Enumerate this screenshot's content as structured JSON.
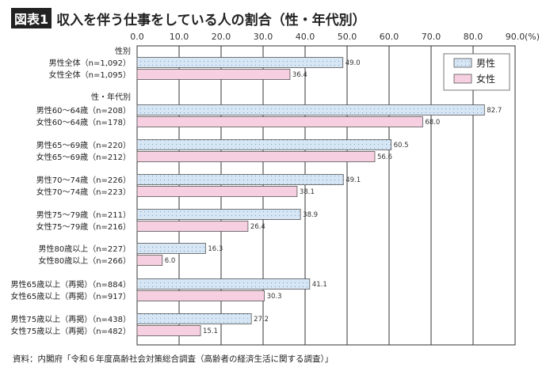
{
  "title_badge": "図表1",
  "title": "収入を伴う仕事をしている人の割合（性・年代別）",
  "source": "資料：内閣府「令和６年度高齢社会対策総合調査（高齢者の経済生活に関する調査）」",
  "chart_data": {
    "type": "bar",
    "orientation": "horizontal",
    "xlim": [
      0,
      90
    ],
    "ticks": [
      "0.0",
      "10.0",
      "20.0",
      "30.0",
      "40.0",
      "50.0",
      "60.0",
      "70.0",
      "80.0",
      "90.0"
    ],
    "unit": "(%)",
    "grid": true,
    "legend_position": "top-right",
    "colors": {
      "男性": "#d6e6f5",
      "女性": "#f6cfe0"
    },
    "series_names": [
      "男性",
      "女性"
    ],
    "groups": [
      {
        "header": "性別",
        "rows": [
          {
            "label": "男性全体（n=1,092）",
            "series": "男性",
            "value": 49.0
          },
          {
            "label": "女性全体（n=1,095）",
            "series": "女性",
            "value": 36.4
          }
        ]
      },
      {
        "header": "性・年代別",
        "rows": [
          {
            "label": "男性60～64歳（n=208）",
            "series": "男性",
            "value": 82.7
          },
          {
            "label": "女性60～64歳（n=178）",
            "series": "女性",
            "value": 68.0
          }
        ]
      },
      {
        "header": "",
        "rows": [
          {
            "label": "男性65～69歳（n=220）",
            "series": "男性",
            "value": 60.5
          },
          {
            "label": "女性65～69歳（n=212）",
            "series": "女性",
            "value": 56.6
          }
        ]
      },
      {
        "header": "",
        "rows": [
          {
            "label": "男性70～74歳（n=226）",
            "series": "男性",
            "value": 49.1
          },
          {
            "label": "女性70～74歳（n=223）",
            "series": "女性",
            "value": 38.1
          }
        ]
      },
      {
        "header": "",
        "rows": [
          {
            "label": "男性75～79歳（n=211）",
            "series": "男性",
            "value": 38.9
          },
          {
            "label": "女性75～79歳（n=216）",
            "series": "女性",
            "value": 26.4
          }
        ]
      },
      {
        "header": "",
        "rows": [
          {
            "label": "男性80歳以上（n=227）",
            "series": "男性",
            "value": 16.3
          },
          {
            "label": "女性80歳以上（n=266）",
            "series": "女性",
            "value": 6.0
          }
        ]
      },
      {
        "header": "",
        "rows": [
          {
            "label": "男性65歳以上（再掲）（n=884）",
            "series": "男性",
            "value": 41.1
          },
          {
            "label": "女性65歳以上（再掲）（n=917）",
            "series": "女性",
            "value": 30.3
          }
        ]
      },
      {
        "header": "",
        "rows": [
          {
            "label": "男性75歳以上（再掲）（n=438）",
            "series": "男性",
            "value": 27.2
          },
          {
            "label": "女性75歳以上（再掲）（n=482）",
            "series": "女性",
            "value": 15.1
          }
        ]
      }
    ]
  }
}
